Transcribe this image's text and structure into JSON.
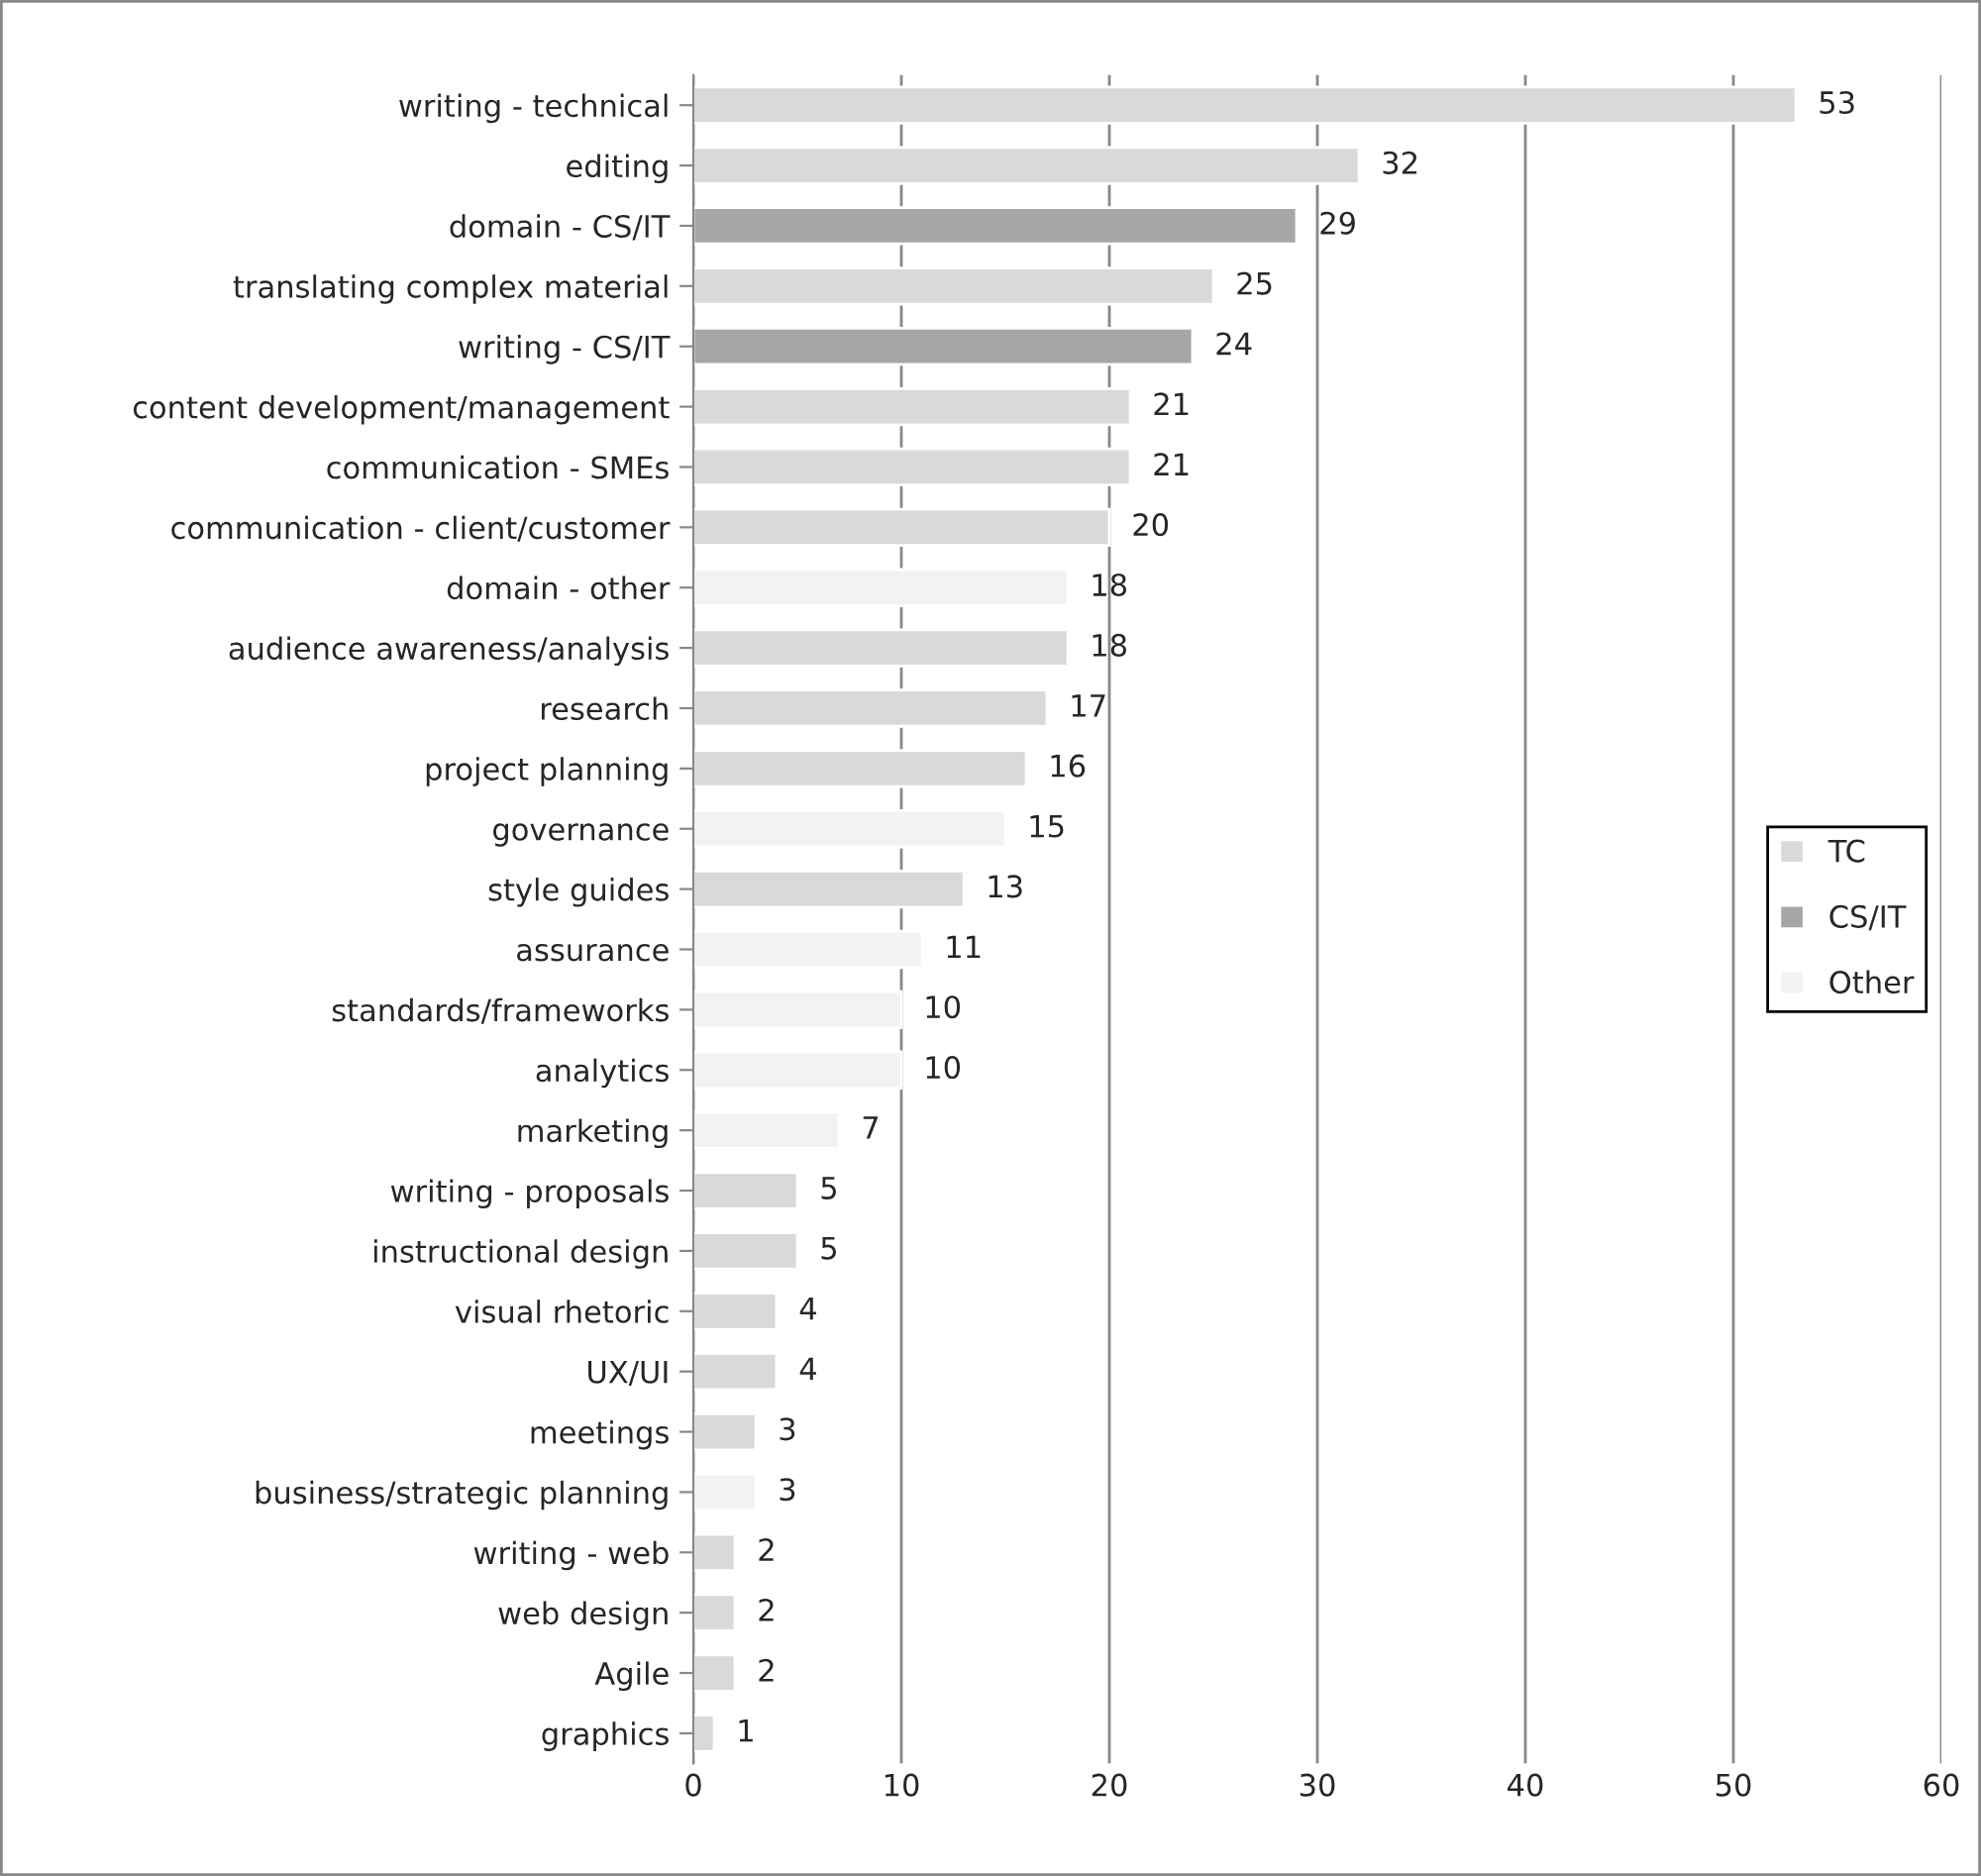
{
  "chart_data": {
    "type": "bar",
    "orientation": "horizontal",
    "categories": [
      "writing - technical",
      "editing",
      "domain - CS/IT",
      "translating complex material",
      "writing - CS/IT",
      "content development/management",
      "communication - SMEs",
      "communication - client/customer",
      "domain - other",
      "audience awareness/analysis",
      "research",
      "project planning",
      "governance",
      "style guides",
      "assurance",
      "standards/frameworks",
      "analytics",
      "marketing",
      "writing - proposals",
      "instructional design",
      "visual rhetoric",
      "UX/UI",
      "meetings",
      "business/strategic planning",
      "writing - web",
      "web design",
      "Agile",
      "graphics"
    ],
    "series": [
      {
        "name": "TC",
        "color": "#d9d9d9",
        "values": [
          53,
          32,
          null,
          25,
          null,
          21,
          21,
          20,
          null,
          18,
          17,
          16,
          null,
          13,
          null,
          null,
          null,
          null,
          5,
          5,
          4,
          4,
          3,
          null,
          2,
          2,
          2,
          1
        ]
      },
      {
        "name": "CS/IT",
        "color": "#a6a6a6",
        "values": [
          null,
          null,
          29,
          null,
          24,
          null,
          null,
          null,
          null,
          null,
          null,
          null,
          null,
          null,
          null,
          null,
          null,
          null,
          null,
          null,
          null,
          null,
          null,
          null,
          null,
          null,
          null,
          null
        ]
      },
      {
        "name": "Other",
        "color": "#f2f2f2",
        "values": [
          null,
          null,
          null,
          null,
          null,
          null,
          null,
          null,
          18,
          null,
          null,
          null,
          15,
          null,
          11,
          10,
          10,
          7,
          null,
          null,
          null,
          null,
          null,
          3,
          null,
          null,
          null,
          null
        ]
      }
    ],
    "xlim": [
      0,
      60
    ],
    "xticks": [
      0,
      10,
      20,
      30,
      40,
      50,
      60
    ],
    "grid": "x",
    "legend": "right",
    "data_labels": true
  }
}
